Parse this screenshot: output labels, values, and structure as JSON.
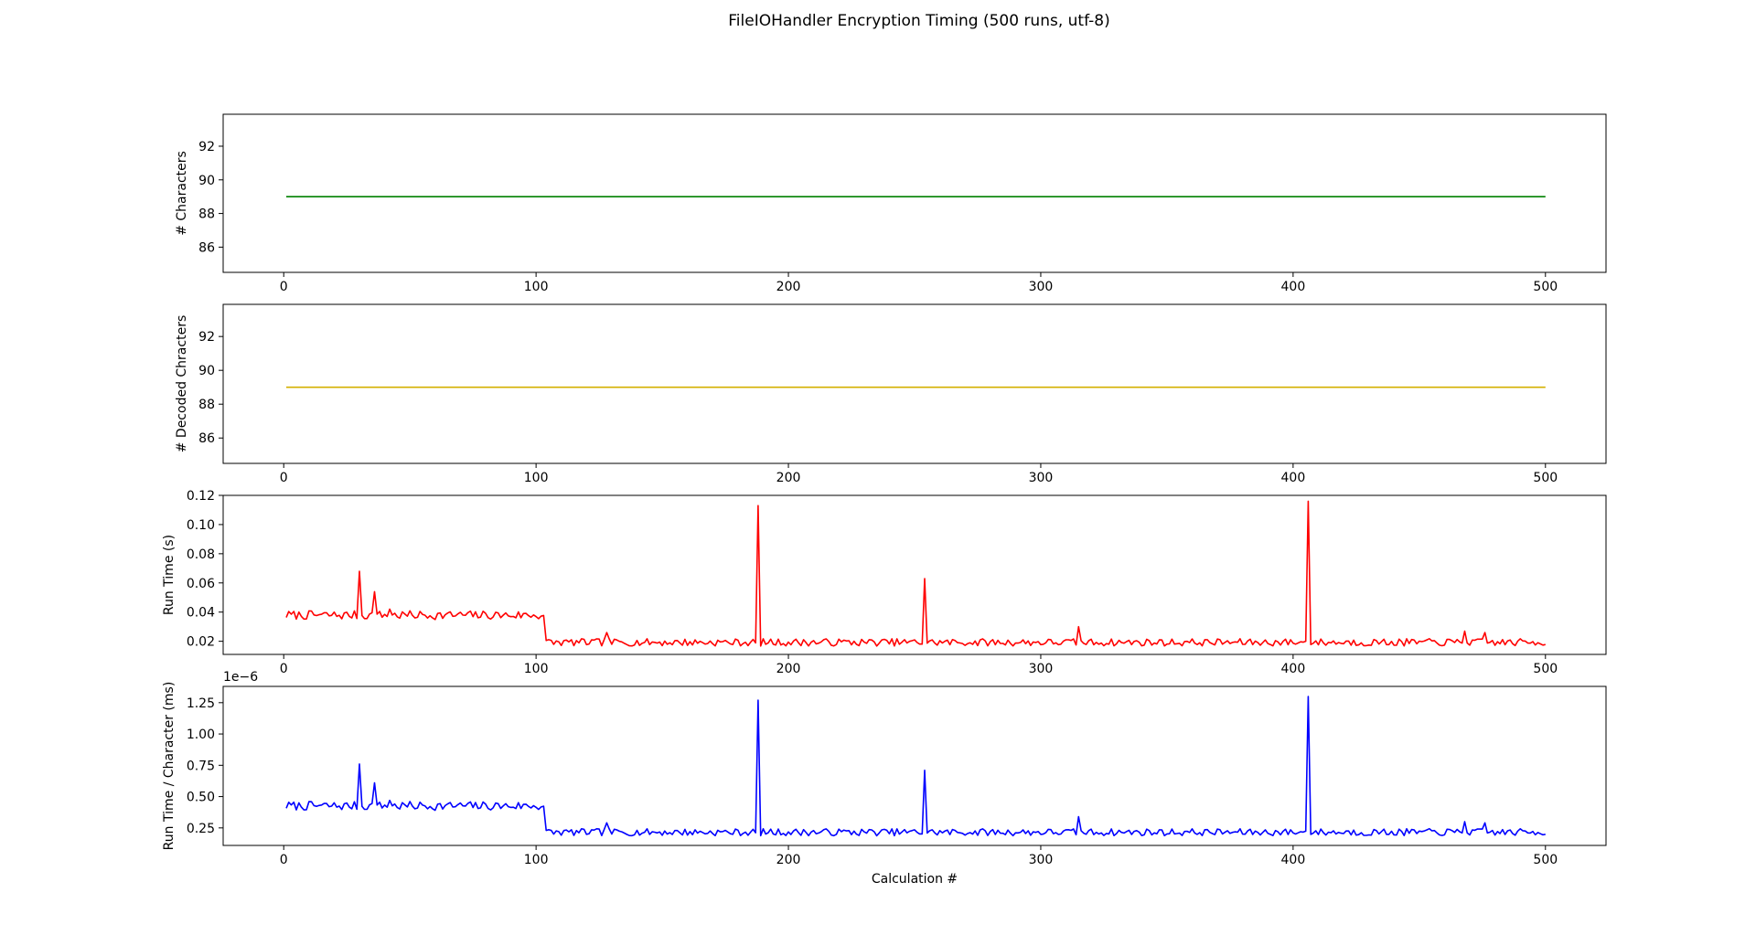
{
  "title": "FileIOHandler Encryption Timing (500 runs, utf-8)",
  "chart_data": [
    {
      "type": "line",
      "ylabel": "# Characters",
      "xlabel": "",
      "xlim": [
        -24,
        524
      ],
      "ylim": [
        84.5,
        93.9
      ],
      "xticks": [
        0,
        100,
        200,
        300,
        400,
        500
      ],
      "yticks": [
        86,
        88,
        90,
        92
      ],
      "ytick_labels": [
        "86",
        "88",
        "90",
        "92"
      ],
      "offset_text": "",
      "series": [
        {
          "color": "#008000",
          "kind": "constant",
          "x_range": [
            1,
            500
          ],
          "value": 89
        }
      ]
    },
    {
      "type": "line",
      "ylabel": "# Decoded Chracters",
      "xlabel": "",
      "xlim": [
        -24,
        524
      ],
      "ylim": [
        84.5,
        93.9
      ],
      "xticks": [
        0,
        100,
        200,
        300,
        400,
        500
      ],
      "yticks": [
        86,
        88,
        90,
        92
      ],
      "ytick_labels": [
        "86",
        "88",
        "90",
        "92"
      ],
      "offset_text": "",
      "series": [
        {
          "color": "#d4b000",
          "kind": "constant",
          "x_range": [
            1,
            500
          ],
          "value": 89
        }
      ]
    },
    {
      "type": "line",
      "ylabel": "Run Time (s)",
      "xlabel": "",
      "xlim": [
        -24,
        524
      ],
      "ylim": [
        0.011,
        0.12
      ],
      "xticks": [
        0,
        100,
        200,
        300,
        400,
        500
      ],
      "yticks": [
        0.02,
        0.04,
        0.06,
        0.08,
        0.1,
        0.12
      ],
      "ytick_labels": [
        "0.02",
        "0.04",
        "0.06",
        "0.08",
        "0.10",
        "0.12"
      ],
      "offset_text": "",
      "series": [
        {
          "color": "#ff0000",
          "kind": "noisy",
          "x_range": [
            1,
            500
          ],
          "seed": 7,
          "segments": [
            {
              "from": 1,
              "to": 103,
              "base": 0.037,
              "noise": 0.003
            },
            {
              "from": 104,
              "to": 500,
              "base": 0.0185,
              "noise": 0.0025
            }
          ],
          "spikes": [
            {
              "x": 30,
              "y": 0.068
            },
            {
              "x": 36,
              "y": 0.054
            },
            {
              "x": 42,
              "y": 0.042
            },
            {
              "x": 128,
              "y": 0.026
            },
            {
              "x": 188,
              "y": 0.113
            },
            {
              "x": 254,
              "y": 0.063
            },
            {
              "x": 315,
              "y": 0.03
            },
            {
              "x": 406,
              "y": 0.116
            },
            {
              "x": 468,
              "y": 0.027
            },
            {
              "x": 476,
              "y": 0.026
            }
          ]
        }
      ]
    },
    {
      "type": "line",
      "ylabel": "Run Time / Character (ms)",
      "xlabel": "Calculation #",
      "xlim": [
        -24,
        524
      ],
      "ylim": [
        0.11,
        1.38
      ],
      "xticks": [
        0,
        100,
        200,
        300,
        400,
        500
      ],
      "yticks": [
        0.25,
        0.5,
        0.75,
        1.0,
        1.25
      ],
      "ytick_labels": [
        "0.25",
        "0.50",
        "0.75",
        "1.00",
        "1.25"
      ],
      "offset_text": "1e−6",
      "series": [
        {
          "color": "#0000ff",
          "kind": "noisy",
          "x_range": [
            1,
            500
          ],
          "seed": 7,
          "segments": [
            {
              "from": 1,
              "to": 103,
              "base": 0.415,
              "noise": 0.035
            },
            {
              "from": 104,
              "to": 500,
              "base": 0.207,
              "noise": 0.028
            }
          ],
          "spikes": [
            {
              "x": 30,
              "y": 0.76
            },
            {
              "x": 36,
              "y": 0.61
            },
            {
              "x": 42,
              "y": 0.47
            },
            {
              "x": 128,
              "y": 0.29
            },
            {
              "x": 188,
              "y": 1.27
            },
            {
              "x": 254,
              "y": 0.71
            },
            {
              "x": 315,
              "y": 0.34
            },
            {
              "x": 406,
              "y": 1.3
            },
            {
              "x": 468,
              "y": 0.3
            },
            {
              "x": 476,
              "y": 0.29
            }
          ]
        }
      ]
    }
  ]
}
